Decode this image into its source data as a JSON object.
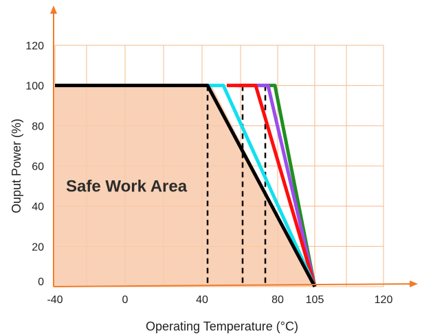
{
  "chart_data": {
    "type": "line",
    "xlabel": "Operating Temperature (°C)",
    "ylabel": "Ouput Power (%)",
    "x_ticks": [
      {
        "value": -40,
        "label": "-40"
      },
      {
        "value": 0,
        "label": "0"
      },
      {
        "value": 40,
        "label": "40"
      },
      {
        "value": 80,
        "label": "80"
      },
      {
        "value": 105,
        "label": "105"
      },
      {
        "value": 120,
        "label": "120"
      }
    ],
    "y_ticks": [
      {
        "value": 0,
        "label": "0"
      },
      {
        "value": 20,
        "label": "20"
      },
      {
        "value": 40,
        "label": "40"
      },
      {
        "value": 60,
        "label": "60"
      },
      {
        "value": 80,
        "label": "80"
      },
      {
        "value": 100,
        "label": "100"
      },
      {
        "value": 120,
        "label": "120"
      }
    ],
    "xlim": [
      -50,
      125
    ],
    "ylim": [
      0,
      125
    ],
    "grid": true,
    "annotation": {
      "text": "Safe Work Area",
      "x": -10,
      "y": 50
    },
    "safe_area": {
      "color": "#f8c9a9",
      "points": [
        [
          -40,
          100
        ],
        [
          45,
          100
        ],
        [
          105,
          0
        ],
        [
          -40,
          0
        ]
      ]
    },
    "series": [
      {
        "color": "#1f8f1f",
        "points": [
          [
            -40,
            100
          ],
          [
            75,
            100
          ],
          [
            105,
            0
          ]
        ]
      },
      {
        "color": "#9b4dea",
        "points": [
          [
            -40,
            100
          ],
          [
            72,
            100
          ],
          [
            105,
            0
          ]
        ]
      },
      {
        "color": "#ff0d0d",
        "points": [
          [
            -40,
            100
          ],
          [
            67,
            100
          ],
          [
            105,
            0
          ]
        ]
      },
      {
        "color": "#12e0ee",
        "points": [
          [
            -40,
            100
          ],
          [
            55,
            100
          ],
          [
            105,
            0
          ]
        ]
      },
      {
        "color": "#000000",
        "points": [
          [
            -40,
            100
          ],
          [
            45,
            100
          ],
          [
            105,
            0
          ]
        ]
      }
    ],
    "reference_lines_x": [
      45,
      63,
      72
    ],
    "axis_color": "#f07c28",
    "grid_color": "#f5b88a"
  }
}
